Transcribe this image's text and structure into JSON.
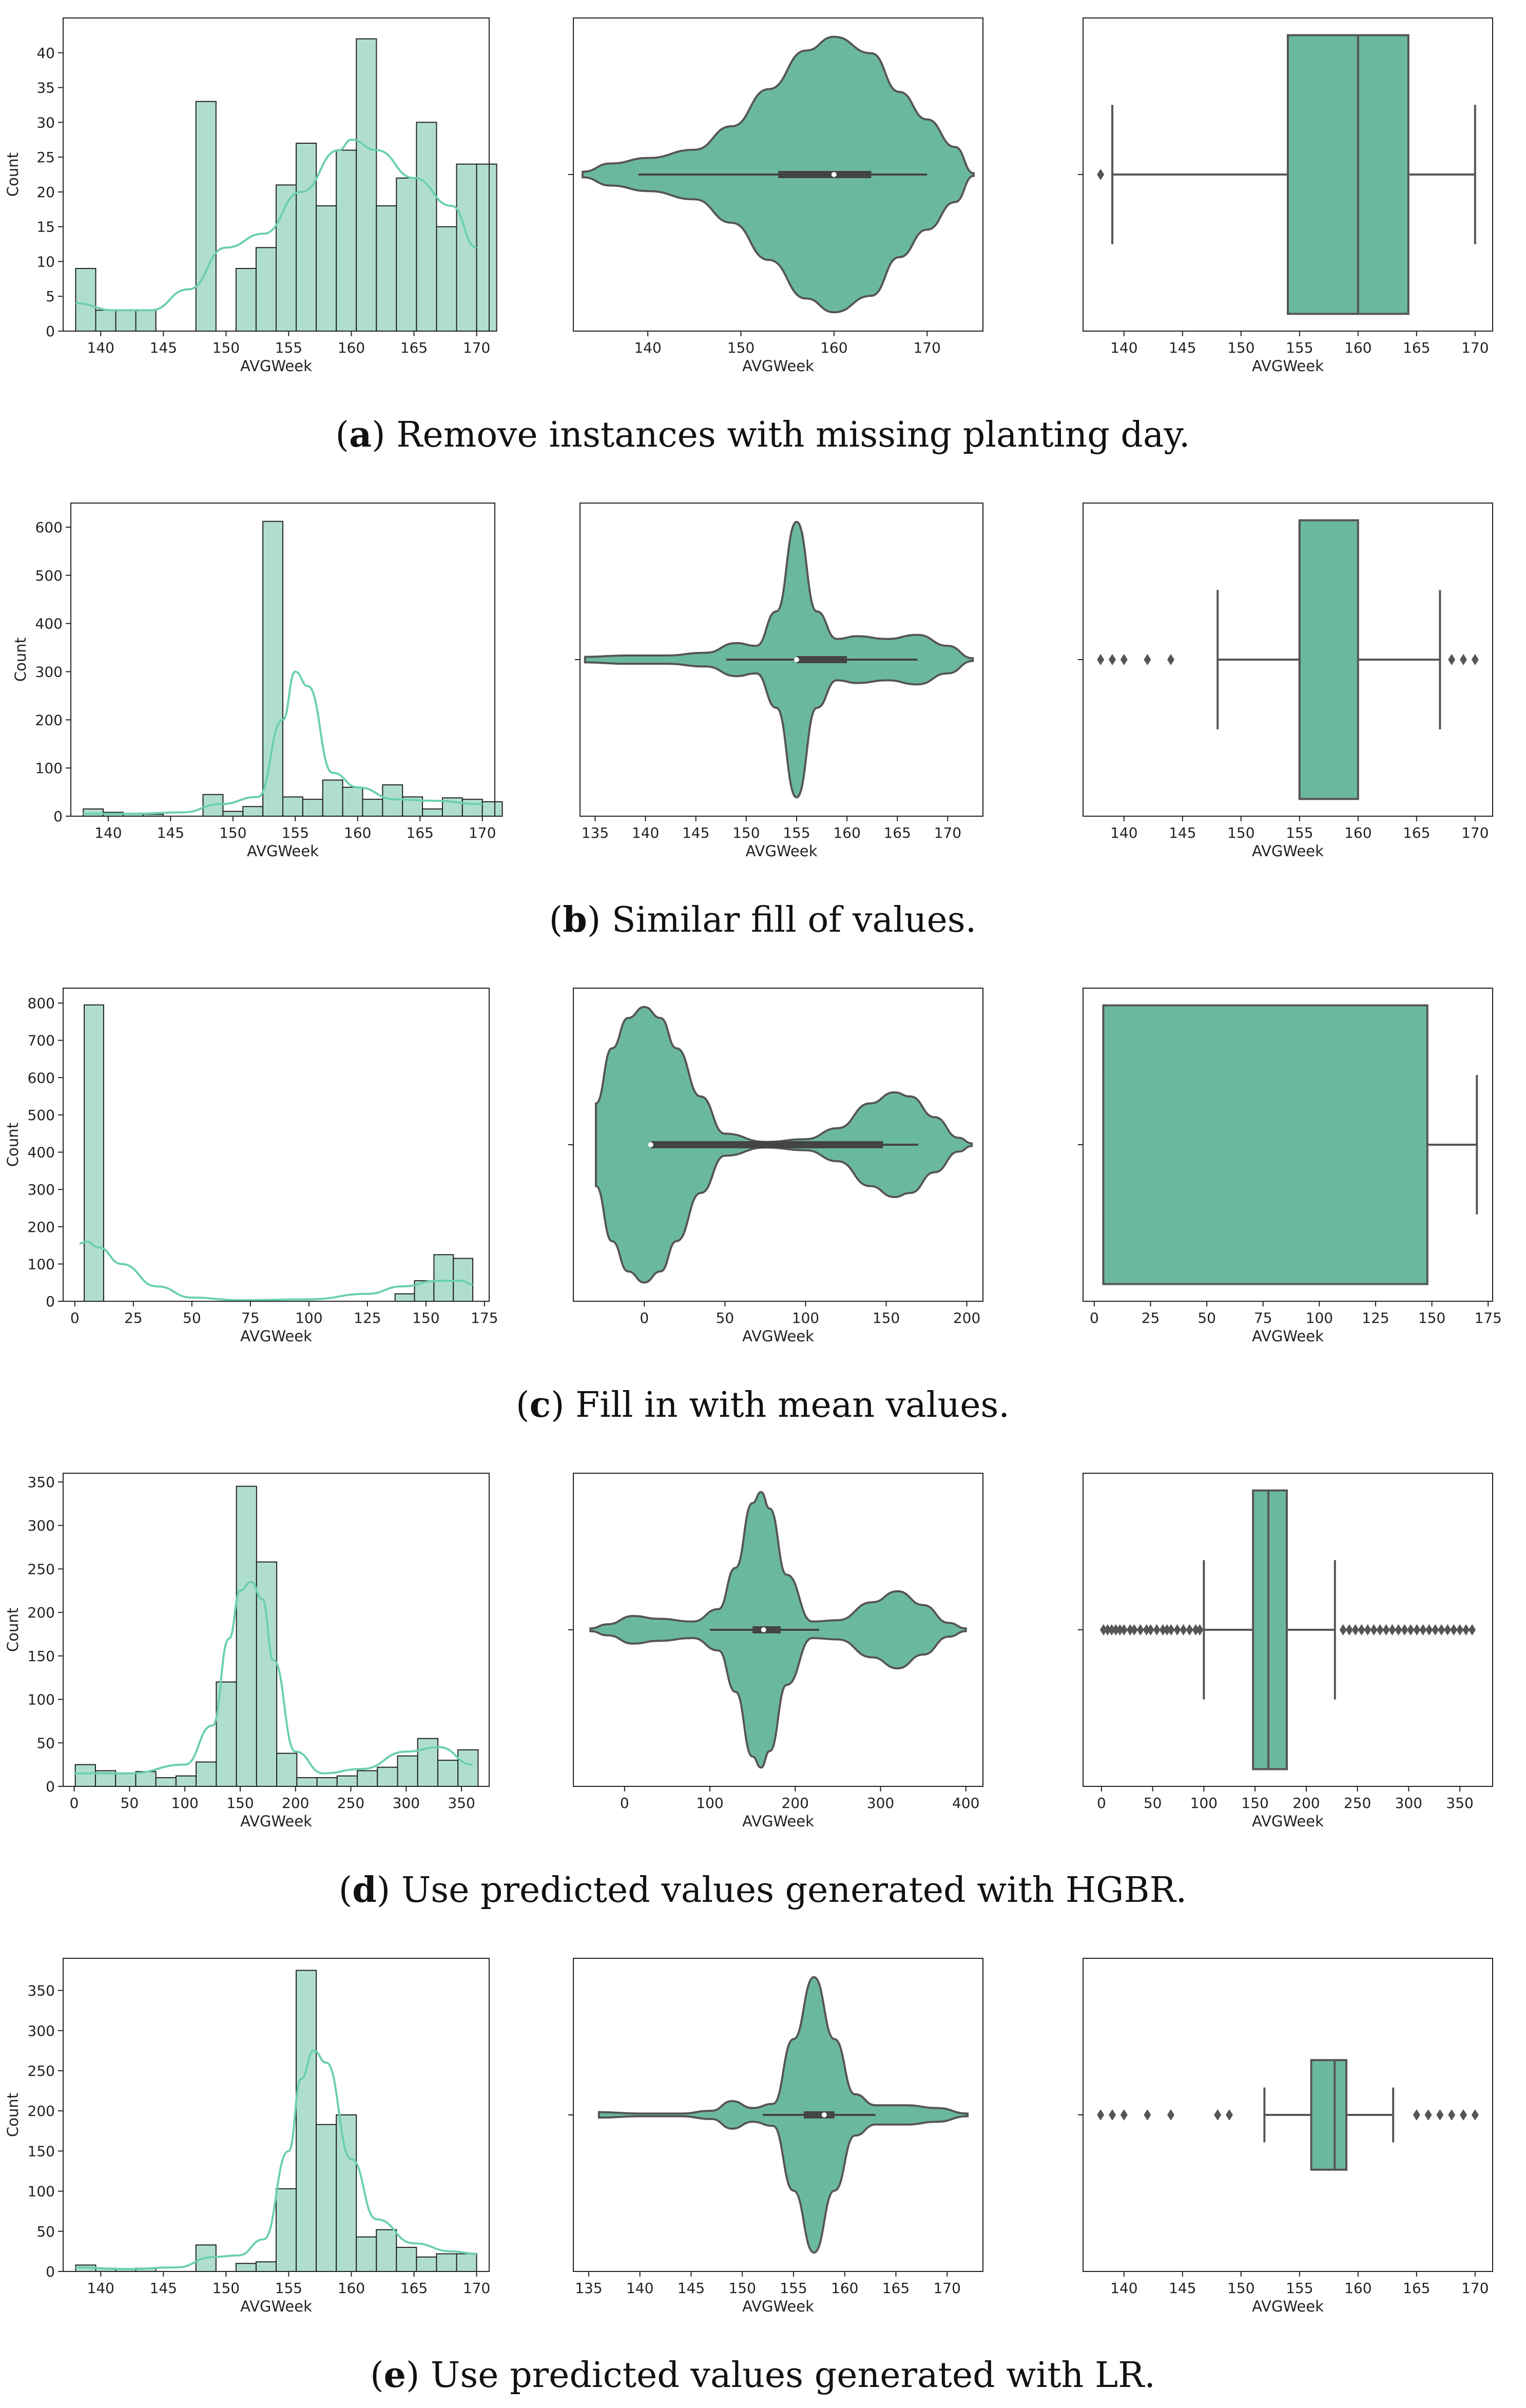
{
  "colors": {
    "fill": "#6bb8a0",
    "hist_fill": "#b0dece",
    "kde": "#6bcfb0",
    "edge": "#555555",
    "bar_edge": "#222222"
  },
  "chart_data": [
    {
      "row": "a",
      "caption": {
        "letter": "a",
        "text": ") Remove instances with missing planting day."
      },
      "hist": {
        "type": "bar",
        "xlabel": "AVGWeek",
        "ylabel": "Count",
        "xlim": [
          137,
          171
        ],
        "ylim": [
          0,
          45
        ],
        "xticks": [
          140,
          145,
          150,
          155,
          160,
          165,
          170
        ],
        "yticks": [
          0,
          5,
          10,
          15,
          20,
          25,
          30,
          35,
          40
        ],
        "bin_start": 138,
        "bin_width": 1.6,
        "values": [
          9,
          3,
          3,
          3,
          0,
          0,
          33,
          0,
          9,
          12,
          21,
          27,
          18,
          26,
          42,
          18,
          22,
          30,
          15,
          24,
          24
        ],
        "kde_x": [
          138,
          141,
          144,
          147,
          150,
          153,
          156,
          159,
          160,
          162,
          165,
          168,
          170
        ],
        "kde_y": [
          4,
          3,
          3,
          6,
          12,
          14,
          20,
          26,
          27.5,
          26,
          22,
          18,
          12
        ]
      },
      "violin": {
        "type": "violin",
        "xlabel": "AVGWeek",
        "xlim": [
          132,
          176
        ],
        "xticks": [
          140,
          150,
          160,
          170
        ],
        "density_x": [
          133,
          136,
          140,
          145,
          149,
          153,
          157,
          160,
          164,
          167,
          170,
          173,
          175
        ],
        "density_w": [
          0.02,
          0.08,
          0.12,
          0.18,
          0.35,
          0.62,
          0.9,
          1.0,
          0.88,
          0.6,
          0.4,
          0.2,
          0.01
        ],
        "q1": 154,
        "median": 160,
        "q3": 164,
        "whisker_low": 139,
        "whisker_high": 170
      },
      "box": {
        "type": "box",
        "xlabel": "AVGWeek",
        "xlim": [
          136.5,
          171.5
        ],
        "xticks": [
          140,
          145,
          150,
          155,
          160,
          165,
          170
        ],
        "q1": 154,
        "median": 160,
        "q3": 164.3,
        "whisker_low": 139,
        "whisker_high": 170,
        "outliers": [
          138
        ],
        "box_frac": 0.89
      }
    },
    {
      "row": "b",
      "caption": {
        "letter": "b",
        "text": ") Similar fill of values."
      },
      "hist": {
        "type": "bar",
        "xlabel": "AVGWeek",
        "ylabel": "Count",
        "xlim": [
          137,
          171
        ],
        "ylim": [
          0,
          650
        ],
        "xticks": [
          140,
          145,
          150,
          155,
          160,
          165,
          170
        ],
        "yticks": [
          0,
          100,
          200,
          300,
          400,
          500,
          600
        ],
        "bin_start": 138,
        "bin_width": 1.6,
        "values": [
          15,
          8,
          5,
          4,
          0,
          0,
          45,
          10,
          20,
          612,
          40,
          35,
          75,
          60,
          35,
          65,
          40,
          15,
          38,
          35,
          30
        ],
        "kde_x": [
          138,
          142,
          146,
          149,
          152,
          154,
          155,
          156,
          158,
          160,
          163,
          166,
          170
        ],
        "kde_y": [
          5,
          5,
          8,
          25,
          40,
          200,
          300,
          270,
          90,
          60,
          35,
          32,
          25
        ]
      },
      "violin": {
        "type": "violin",
        "xlabel": "AVGWeek",
        "xlim": [
          133.5,
          173.5
        ],
        "xticks": [
          135,
          140,
          145,
          150,
          155,
          160,
          165,
          170
        ],
        "density_x": [
          134,
          138,
          142,
          146,
          149,
          151,
          153,
          155,
          157,
          159,
          161,
          164,
          167,
          170,
          172.5
        ],
        "density_w": [
          0.02,
          0.03,
          0.03,
          0.05,
          0.12,
          0.1,
          0.35,
          1.0,
          0.35,
          0.15,
          0.17,
          0.15,
          0.18,
          0.1,
          0.01
        ],
        "q1": 155,
        "median": 155,
        "q3": 160,
        "whisker_low": 148,
        "whisker_high": 167
      },
      "box": {
        "type": "box",
        "xlabel": "AVGWeek",
        "xlim": [
          136.5,
          171.5
        ],
        "xticks": [
          140,
          145,
          150,
          155,
          160,
          165,
          170
        ],
        "q1": 155,
        "median": 155,
        "q3": 160,
        "whisker_low": 148,
        "whisker_high": 167,
        "outliers": [
          138,
          139,
          140,
          142,
          144,
          168,
          169,
          170
        ],
        "box_frac": 0.89
      }
    },
    {
      "row": "c",
      "caption": {
        "letter": "c",
        "text": ") Fill in with mean values."
      },
      "hist": {
        "type": "bar",
        "xlabel": "AVGWeek",
        "ylabel": "Count",
        "xlim": [
          -5,
          177
        ],
        "ylim": [
          0,
          840
        ],
        "xticks": [
          0,
          25,
          50,
          75,
          100,
          125,
          150,
          175
        ],
        "yticks": [
          0,
          100,
          200,
          300,
          400,
          500,
          600,
          700,
          800
        ],
        "bin_start": 4,
        "bin_width": 8.3,
        "values": [
          795,
          0,
          0,
          0,
          0,
          0,
          0,
          0,
          0,
          0,
          0,
          0,
          0,
          0,
          0,
          0,
          20,
          55,
          125,
          115
        ],
        "kde_x": [
          2,
          5,
          10,
          20,
          35,
          50,
          70,
          100,
          125,
          140,
          155,
          165,
          170
        ],
        "kde_y": [
          155,
          160,
          145,
          100,
          40,
          10,
          3,
          5,
          20,
          40,
          55,
          55,
          45
        ]
      },
      "violin": {
        "type": "violin",
        "xlabel": "AVGWeek",
        "xlim": [
          -44,
          210
        ],
        "xticks": [
          0,
          50,
          100,
          150,
          200
        ],
        "density_x": [
          -30,
          -20,
          -10,
          0,
          10,
          20,
          35,
          50,
          75,
          100,
          120,
          140,
          155,
          165,
          180,
          195,
          203
        ],
        "density_w": [
          0.3,
          0.7,
          0.92,
          1.0,
          0.92,
          0.7,
          0.35,
          0.08,
          0.02,
          0.04,
          0.12,
          0.3,
          0.38,
          0.35,
          0.2,
          0.05,
          0.01
        ],
        "q1": 4,
        "median": 4,
        "q3": 148,
        "whisker_low": 4,
        "whisker_high": 170
      },
      "box": {
        "type": "box",
        "xlabel": "AVGWeek",
        "xlim": [
          -5,
          177
        ],
        "xticks": [
          0,
          25,
          50,
          75,
          100,
          125,
          150,
          175
        ],
        "q1": 4,
        "median": 4,
        "q3": 148,
        "whisker_low": 4,
        "whisker_high": 170,
        "outliers": [],
        "box_frac": 0.89
      }
    },
    {
      "row": "d",
      "caption": {
        "letter": "d",
        "text": ") Use predicted values generated with HGBR."
      },
      "hist": {
        "type": "bar",
        "xlabel": "AVGWeek",
        "ylabel": "Count",
        "xlim": [
          -10,
          375
        ],
        "ylim": [
          0,
          360
        ],
        "xticks": [
          0,
          50,
          100,
          150,
          200,
          250,
          300,
          350
        ],
        "yticks": [
          0,
          50,
          100,
          150,
          200,
          250,
          300,
          350
        ],
        "bin_start": 1,
        "bin_width": 18.2,
        "values": [
          25,
          18,
          15,
          17,
          10,
          12,
          28,
          120,
          345,
          258,
          38,
          10,
          10,
          12,
          18,
          22,
          35,
          55,
          30,
          42
        ],
        "kde_x": [
          0,
          50,
          100,
          125,
          140,
          150,
          160,
          170,
          180,
          200,
          225,
          260,
          300,
          330,
          360
        ],
        "kde_y": [
          15,
          15,
          25,
          70,
          170,
          225,
          235,
          215,
          145,
          40,
          15,
          20,
          40,
          45,
          25
        ]
      },
      "violin": {
        "type": "violin",
        "xlabel": "AVGWeek",
        "xlim": [
          -60,
          420
        ],
        "xticks": [
          0,
          100,
          200,
          300,
          400
        ],
        "density_x": [
          -40,
          -20,
          10,
          40,
          80,
          110,
          130,
          150,
          160,
          170,
          190,
          220,
          250,
          290,
          320,
          350,
          380,
          400
        ],
        "density_w": [
          0.01,
          0.04,
          0.1,
          0.08,
          0.06,
          0.15,
          0.45,
          0.92,
          1.0,
          0.88,
          0.4,
          0.06,
          0.07,
          0.2,
          0.28,
          0.18,
          0.05,
          0.01
        ],
        "q1": 150,
        "median": 163,
        "q3": 183,
        "whisker_low": 100,
        "whisker_high": 228
      },
      "box": {
        "type": "box",
        "xlabel": "AVGWeek",
        "xlim": [
          -18,
          382
        ],
        "xticks": [
          0,
          50,
          100,
          150,
          200,
          250,
          300,
          350
        ],
        "q1": 148,
        "median": 163,
        "q3": 181,
        "whisker_low": 100,
        "whisker_high": 228,
        "outliers": [
          2,
          6,
          10,
          14,
          18,
          22,
          28,
          32,
          38,
          44,
          48,
          54,
          60,
          64,
          68,
          74,
          80,
          86,
          92,
          96,
          236,
          242,
          248,
          254,
          260,
          266,
          272,
          278,
          284,
          290,
          296,
          302,
          308,
          314,
          320,
          326,
          332,
          338,
          344,
          350,
          356,
          362
        ],
        "box_frac": 0.89
      }
    },
    {
      "row": "e",
      "caption": {
        "letter": "e",
        "text": ") Use predicted values generated with LR."
      },
      "hist": {
        "type": "bar",
        "xlabel": "AVGWeek",
        "ylabel": "Count",
        "xlim": [
          137,
          171
        ],
        "ylim": [
          0,
          390
        ],
        "xticks": [
          140,
          145,
          150,
          155,
          160,
          165,
          170
        ],
        "yticks": [
          0,
          50,
          100,
          150,
          200,
          250,
          300,
          350
        ],
        "bin_start": 138,
        "bin_width": 1.6,
        "values": [
          8,
          4,
          3,
          4,
          0,
          0,
          33,
          0,
          10,
          12,
          103,
          375,
          183,
          195,
          43,
          52,
          30,
          18,
          22,
          22,
          0
        ],
        "kde_x": [
          138,
          142,
          146,
          149,
          151,
          153,
          155,
          156,
          157,
          158,
          160,
          162,
          165,
          168,
          170
        ],
        "kde_y": [
          5,
          3,
          5,
          18,
          20,
          40,
          150,
          240,
          275,
          260,
          140,
          65,
          35,
          25,
          22
        ]
      },
      "violin": {
        "type": "violin",
        "xlabel": "AVGWeek",
        "xlim": [
          133.5,
          173.5
        ],
        "xticks": [
          135,
          140,
          145,
          150,
          155,
          160,
          165,
          170
        ],
        "density_x": [
          136,
          140,
          144,
          147,
          149,
          151,
          153,
          155,
          157,
          159,
          161,
          163,
          166,
          169,
          172
        ],
        "density_w": [
          0.02,
          0.01,
          0.01,
          0.03,
          0.1,
          0.05,
          0.08,
          0.55,
          1.0,
          0.55,
          0.15,
          0.07,
          0.07,
          0.05,
          0.01
        ],
        "q1": 156,
        "median": 158,
        "q3": 159,
        "whisker_low": 152,
        "whisker_high": 163
      },
      "box": {
        "type": "box",
        "xlabel": "AVGWeek",
        "xlim": [
          136.5,
          171.5
        ],
        "xticks": [
          140,
          145,
          150,
          155,
          160,
          165,
          170
        ],
        "q1": 156,
        "median": 158,
        "q3": 159,
        "whisker_low": 152,
        "whisker_high": 163,
        "outliers": [
          138,
          139,
          140,
          142,
          144,
          148,
          149,
          165,
          166,
          167,
          168,
          169,
          170
        ],
        "box_frac": 0.35
      }
    }
  ]
}
